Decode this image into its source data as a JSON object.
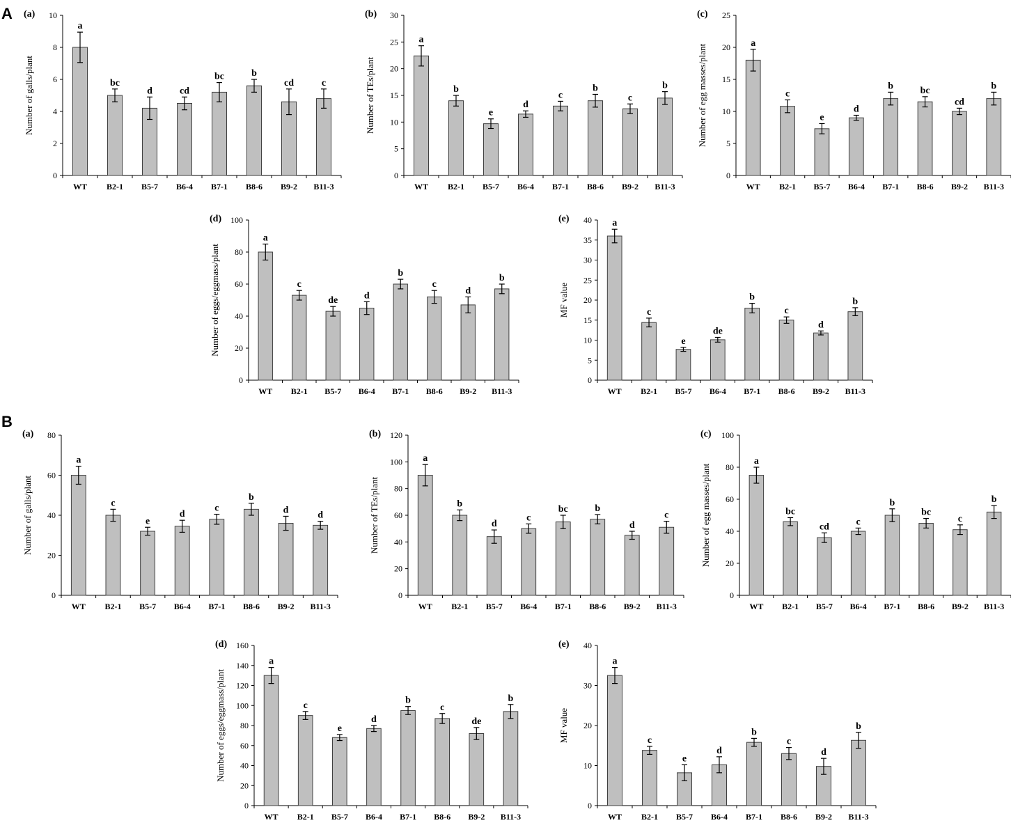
{
  "section_labels": [
    "A",
    "B"
  ],
  "colors": {
    "bar_fill": "#bfbfbf",
    "bar_stroke": "#404040",
    "axis": "#000000"
  },
  "chart_data": [
    {
      "id": "A-a",
      "section": "A",
      "panel_label": "(a)",
      "type": "bar",
      "ylabel": "Number of galls/plant",
      "ylim": [
        0,
        10
      ],
      "yticks": [
        0,
        2,
        4,
        6,
        8,
        10
      ],
      "categories": [
        "WT",
        "B2-1",
        "B5-7",
        "B6-4",
        "B7-1",
        "B8-6",
        "B9-2",
        "B11-3"
      ],
      "values": [
        8.0,
        5.0,
        4.2,
        4.5,
        5.2,
        5.6,
        4.6,
        4.8
      ],
      "errors": [
        0.95,
        0.4,
        0.7,
        0.4,
        0.6,
        0.4,
        0.8,
        0.6
      ],
      "significance": [
        "a",
        "bc",
        "d",
        "cd",
        "bc",
        "b",
        "cd",
        "c"
      ]
    },
    {
      "id": "A-b",
      "section": "A",
      "panel_label": "(b)",
      "type": "bar",
      "ylabel": "Number of TEs/plant",
      "ylim": [
        0,
        30
      ],
      "yticks": [
        0,
        5,
        10,
        15,
        20,
        25,
        30
      ],
      "categories": [
        "WT",
        "B2-1",
        "B5-7",
        "B6-4",
        "B7-1",
        "B8-6",
        "B9-2",
        "B11-3"
      ],
      "values": [
        22.4,
        14.0,
        9.7,
        11.5,
        13.0,
        14.0,
        12.5,
        14.5
      ],
      "errors": [
        1.9,
        1.0,
        0.9,
        0.6,
        0.9,
        1.2,
        0.9,
        1.2
      ],
      "significance": [
        "a",
        "b",
        "e",
        "d",
        "c",
        "b",
        "c",
        "b"
      ]
    },
    {
      "id": "A-c",
      "section": "A",
      "panel_label": "(c)",
      "type": "bar",
      "ylabel": "Number of egg masses/plant",
      "ylim": [
        0,
        25
      ],
      "yticks": [
        0,
        5,
        10,
        15,
        20,
        25
      ],
      "categories": [
        "WT",
        "B2-1",
        "B5-7",
        "B6-4",
        "B7-1",
        "B8-6",
        "B9-2",
        "B11-3"
      ],
      "values": [
        18.0,
        10.8,
        7.3,
        9.0,
        12.0,
        11.5,
        10.0,
        12.0
      ],
      "errors": [
        1.7,
        1.0,
        0.8,
        0.4,
        1.0,
        0.8,
        0.5,
        1.0
      ],
      "significance": [
        "a",
        "c",
        "e",
        "d",
        "b",
        "bc",
        "cd",
        "b"
      ]
    },
    {
      "id": "A-d",
      "section": "A",
      "panel_label": "(d)",
      "type": "bar",
      "ylabel": "Number of eggs/eggmass/plant",
      "ylim": [
        0,
        100
      ],
      "yticks": [
        0,
        20,
        40,
        60,
        80,
        100
      ],
      "categories": [
        "WT",
        "B2-1",
        "B5-7",
        "B6-4",
        "B7-1",
        "B8-6",
        "B9-2",
        "B11-3"
      ],
      "values": [
        80,
        53,
        43,
        45,
        60,
        52,
        47,
        57
      ],
      "errors": [
        5,
        3,
        3,
        4,
        3,
        4,
        5,
        3
      ],
      "significance": [
        "a",
        "c",
        "de",
        "d",
        "b",
        "c",
        "d",
        "b"
      ]
    },
    {
      "id": "A-e",
      "section": "A",
      "panel_label": "(e)",
      "type": "bar",
      "ylabel": "MF value",
      "ylim": [
        0,
        40
      ],
      "yticks": [
        0,
        5,
        10,
        15,
        20,
        25,
        30,
        35,
        40
      ],
      "categories": [
        "WT",
        "B2-1",
        "B5-7",
        "B6-4",
        "B7-1",
        "B8-6",
        "B9-2",
        "B11-3"
      ],
      "values": [
        36.0,
        14.4,
        7.7,
        10.1,
        18.0,
        15.0,
        11.8,
        17.1
      ],
      "errors": [
        1.7,
        1.1,
        0.5,
        0.6,
        1.2,
        0.8,
        0.5,
        1.0
      ],
      "significance": [
        "a",
        "c",
        "e",
        "de",
        "b",
        "c",
        "d",
        "b"
      ]
    },
    {
      "id": "B-a",
      "section": "B",
      "panel_label": "(a)",
      "type": "bar",
      "ylabel": "Number of galls/plant",
      "ylim": [
        0,
        80
      ],
      "yticks": [
        0,
        20,
        40,
        60,
        80
      ],
      "categories": [
        "WT",
        "B2-1",
        "B5-7",
        "B6-4",
        "B7-1",
        "B8-6",
        "B9-2",
        "B11-3"
      ],
      "values": [
        60,
        40,
        32,
        34.5,
        38,
        43,
        36,
        35
      ],
      "errors": [
        4.5,
        3,
        2,
        3,
        2.5,
        3,
        3.5,
        2
      ],
      "significance": [
        "a",
        "c",
        "e",
        "d",
        "c",
        "b",
        "d",
        "d"
      ]
    },
    {
      "id": "B-b",
      "section": "B",
      "panel_label": "(b)",
      "type": "bar",
      "ylabel": "Number of TEs/plant",
      "ylim": [
        0,
        120
      ],
      "yticks": [
        0,
        20,
        40,
        60,
        80,
        100,
        120
      ],
      "categories": [
        "WT",
        "B2-1",
        "B5-7",
        "B6-4",
        "B7-1",
        "B8-6",
        "B9-2",
        "B11-3"
      ],
      "values": [
        90,
        60,
        44,
        50,
        55,
        57,
        45,
        51
      ],
      "errors": [
        8,
        4,
        5,
        3.5,
        5,
        3.5,
        3,
        4.5
      ],
      "significance": [
        "a",
        "b",
        "d",
        "c",
        "bc",
        "b",
        "d",
        "c"
      ]
    },
    {
      "id": "B-c",
      "section": "B",
      "panel_label": "(c)",
      "type": "bar",
      "ylabel": "Number of egg masses/plant",
      "ylim": [
        0,
        100
      ],
      "yticks": [
        0,
        20,
        40,
        60,
        80,
        100
      ],
      "categories": [
        "WT",
        "B2-1",
        "B5-7",
        "B6-4",
        "B7-1",
        "B8-6",
        "B9-2",
        "B11-3"
      ],
      "values": [
        75,
        46,
        36,
        40,
        50,
        45,
        41,
        52
      ],
      "errors": [
        5,
        2.5,
        3,
        2,
        4,
        3,
        3,
        4
      ],
      "significance": [
        "a",
        "bc",
        "cd",
        "c",
        "b",
        "bc",
        "c",
        "b"
      ]
    },
    {
      "id": "B-d",
      "section": "B",
      "panel_label": "(d)",
      "type": "bar",
      "ylabel": "Number of eggs/eggmass/plant",
      "ylim": [
        0,
        160
      ],
      "yticks": [
        0,
        20,
        40,
        60,
        80,
        100,
        120,
        140,
        160
      ],
      "categories": [
        "WT",
        "B2-1",
        "B5-7",
        "B6-4",
        "B7-1",
        "B8-6",
        "B9-2",
        "B11-3"
      ],
      "values": [
        130,
        90,
        68,
        77,
        95,
        87,
        72,
        94
      ],
      "errors": [
        8,
        4,
        3,
        3,
        4,
        5,
        6,
        7
      ],
      "significance": [
        "a",
        "c",
        "e",
        "d",
        "b",
        "c",
        "de",
        "b"
      ]
    },
    {
      "id": "B-e",
      "section": "B",
      "panel_label": "(e)",
      "type": "bar",
      "ylabel": "MF value",
      "ylim": [
        0,
        40
      ],
      "yticks": [
        0,
        10,
        20,
        30,
        40
      ],
      "categories": [
        "WT",
        "B2-1",
        "B5-7",
        "B6-4",
        "B7-1",
        "B8-6",
        "B9-2",
        "B11-3"
      ],
      "values": [
        32.5,
        13.8,
        8.2,
        10.2,
        15.8,
        13.0,
        9.8,
        16.3
      ],
      "errors": [
        2.0,
        1.0,
        2.0,
        2.0,
        1.0,
        1.5,
        2.0,
        2.0
      ],
      "significance": [
        "a",
        "c",
        "e",
        "d",
        "b",
        "c",
        "d",
        "b"
      ]
    }
  ]
}
